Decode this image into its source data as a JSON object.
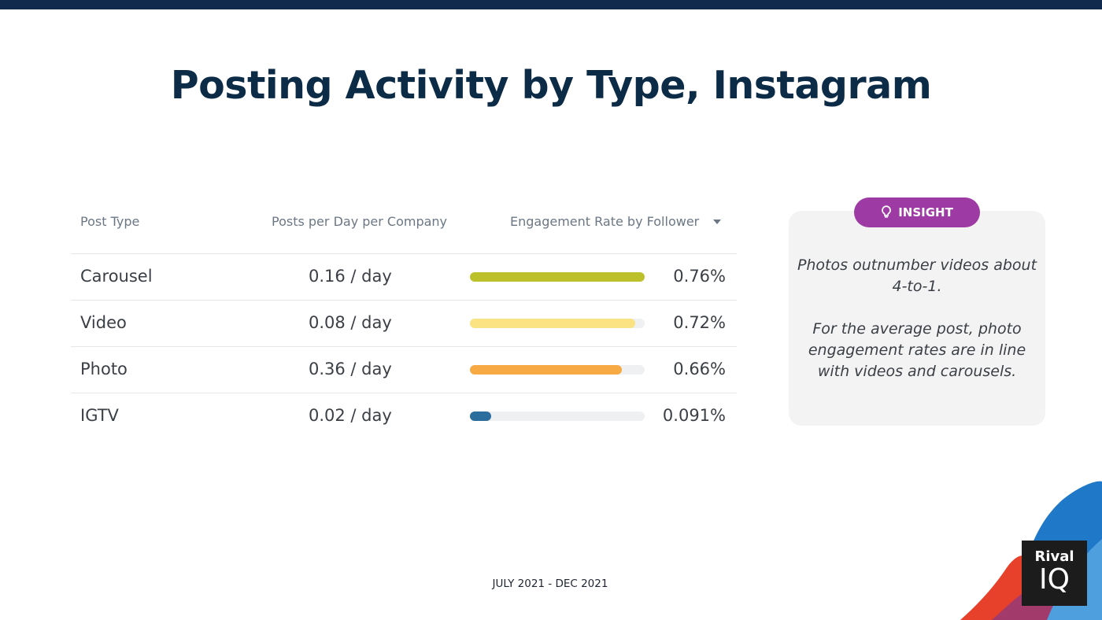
{
  "title": "Posting Activity by Type, Instagram",
  "colors": {
    "top_bar": "#0f2a4d",
    "title": "#0c2b47",
    "insight_badge": "#9d3aa3",
    "track": "#eef0f2"
  },
  "table": {
    "headers": {
      "post_type": "Post Type",
      "posts_per_day": "Posts per Day per Company",
      "engagement": "Engagement Rate by Follower"
    },
    "sort_icon": "caret-down-icon"
  },
  "chart_data": {
    "type": "table",
    "columns": [
      "Post Type",
      "Posts per Day per Company",
      "Engagement Rate by Follower"
    ],
    "rows": [
      {
        "type": "Carousel",
        "posts_text": "0.16 / day",
        "posts_per_day": 0.16,
        "engagement_text": "0.76%",
        "engagement": 0.76,
        "color": "#bcc02a"
      },
      {
        "type": "Video",
        "posts_text": "0.08 / day",
        "posts_per_day": 0.08,
        "engagement_text": "0.72%",
        "engagement": 0.72,
        "color": "#fbe383"
      },
      {
        "type": "Photo",
        "posts_text": "0.36 / day",
        "posts_per_day": 0.36,
        "engagement_text": "0.66%",
        "engagement": 0.66,
        "color": "#f7a944"
      },
      {
        "type": "IGTV",
        "posts_text": "0.02 / day",
        "posts_per_day": 0.02,
        "engagement_text": "0.091%",
        "engagement": 0.091,
        "color": "#2b6d9c"
      }
    ],
    "bar_max": 0.76
  },
  "insight": {
    "badge_label": "INSIGHT",
    "icon": "lightbulb-icon",
    "paragraphs": [
      "Photos outnumber videos about 4-to-1.",
      "For the average post, photo engagement rates are in line with videos and carousels."
    ]
  },
  "footer": {
    "date_range": "JULY 2021 - DEC 2021"
  },
  "logo": {
    "line1": "Rival",
    "line2": "IQ"
  }
}
